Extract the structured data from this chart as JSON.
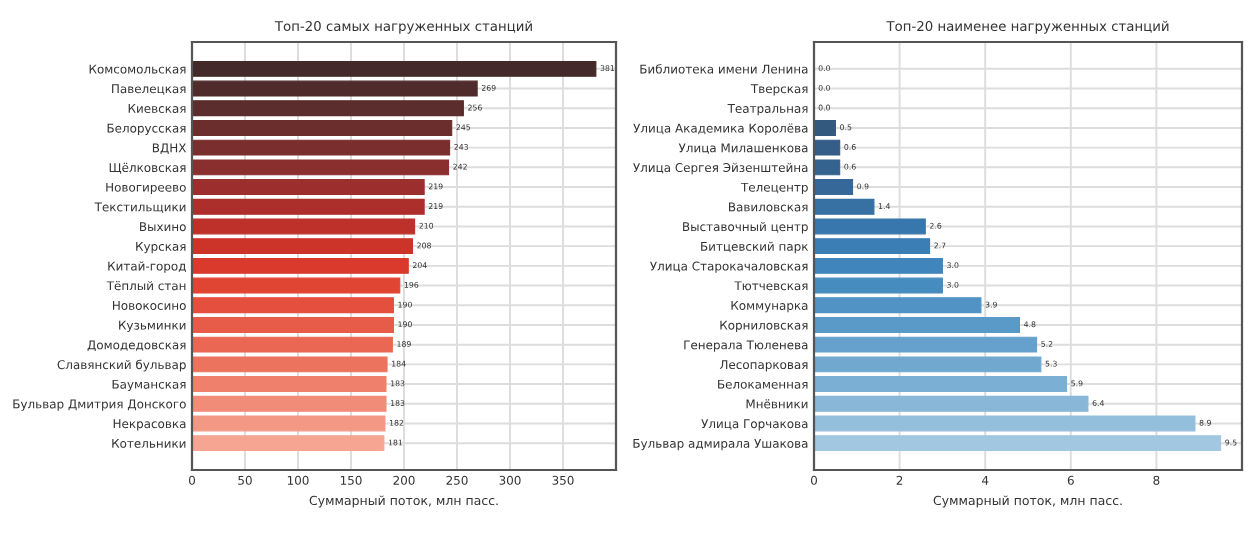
{
  "chart_data": [
    {
      "type": "bar",
      "orientation": "horizontal",
      "title": "Топ-20 самых нагруженных станций",
      "xlabel": "Суммарный поток, млн пасс.",
      "categories": [
        "Комсомольская",
        "Павелецкая",
        "Киевская",
        "Белорусская",
        "ВДНХ",
        "Щёлковская",
        "Новогиреево",
        "Текстильщики",
        "Выхино",
        "Курская",
        "Китай-город",
        "Тёплый стан",
        "Новокосино",
        "Кузьминки",
        "Домодедовская",
        "Славянский бульвар",
        "Бауманская",
        "Бульвар Дмитрия Донского",
        "Некрасовка",
        "Котельники"
      ],
      "values": [
        381,
        269,
        256,
        245,
        243,
        242,
        219,
        219,
        210,
        208,
        204,
        196,
        190,
        190,
        189,
        184,
        183,
        183,
        182,
        181
      ],
      "value_labels": [
        "381",
        "269",
        "256",
        "245",
        "243",
        "242",
        "219",
        "219",
        "210",
        "208",
        "204",
        "196",
        "190",
        "190",
        "189",
        "184",
        "183",
        "183",
        "182",
        "181"
      ],
      "colors": [
        "#432929",
        "#4f2b2b",
        "#5b2d2c",
        "#6b2e2d",
        "#7a2f2e",
        "#8a2f2e",
        "#9c2f2d",
        "#ad2f2b",
        "#be302a",
        "#cc3329",
        "#d93a2b",
        "#e04433",
        "#e4503d",
        "#e75c48",
        "#ea6853",
        "#ec745f",
        "#ef806b",
        "#f18c78",
        "#f39885",
        "#f5a592"
      ],
      "xlim": [
        0,
        400
      ],
      "xticks": [
        0,
        50,
        100,
        150,
        200,
        250,
        300,
        350
      ],
      "grid": true
    },
    {
      "type": "bar",
      "orientation": "horizontal",
      "title": "Топ-20 наименее нагруженных станций",
      "xlabel": "Суммарный поток, млн пасс.",
      "categories": [
        "Библиотека имени Ленина",
        "Тверская",
        "Театральная",
        "Улица Академика Королёва",
        "Улица Милашенкова",
        "Улица Сергея Эйзенштейна",
        "Телецентр",
        "Вавиловская",
        "Выставочный центр",
        "Битцевский парк",
        "Улица Старокачаловская",
        "Тютчевская",
        "Коммунарка",
        "Корниловская",
        "Генерала Тюленева",
        "Лесопарковая",
        "Белокаменная",
        "Мнёвники",
        "Улица Горчакова",
        "Бульвар адмирала Ушакова"
      ],
      "values": [
        0.0,
        0.0,
        0.0,
        0.5,
        0.6,
        0.6,
        0.9,
        1.4,
        2.6,
        2.7,
        3.0,
        3.0,
        3.9,
        4.8,
        5.2,
        5.3,
        5.9,
        6.4,
        8.9,
        9.5
      ],
      "value_labels": [
        "0.0",
        "0.0",
        "0.0",
        "0.5",
        "0.6",
        "0.6",
        "0.9",
        "1.4",
        "2.6",
        "2.7",
        "3.0",
        "3.0",
        "3.9",
        "4.8",
        "5.2",
        "5.3",
        "5.9",
        "6.4",
        "8.9",
        "9.5"
      ],
      "colors": [
        "#2e4a66",
        "#304f6e",
        "#325476",
        "#33597e",
        "#345e87",
        "#356390",
        "#366999",
        "#3770a3",
        "#3877ad",
        "#3b7eb5",
        "#4085bb",
        "#478cbf",
        "#5093c4",
        "#5a9ac8",
        "#65a1cc",
        "#70a8d0",
        "#7cafd4",
        "#88b7d8",
        "#94bfdc",
        "#a1c7e1"
      ],
      "xlim": [
        0,
        10
      ],
      "xticks": [
        0,
        2,
        4,
        6,
        8
      ],
      "grid": true
    }
  ]
}
